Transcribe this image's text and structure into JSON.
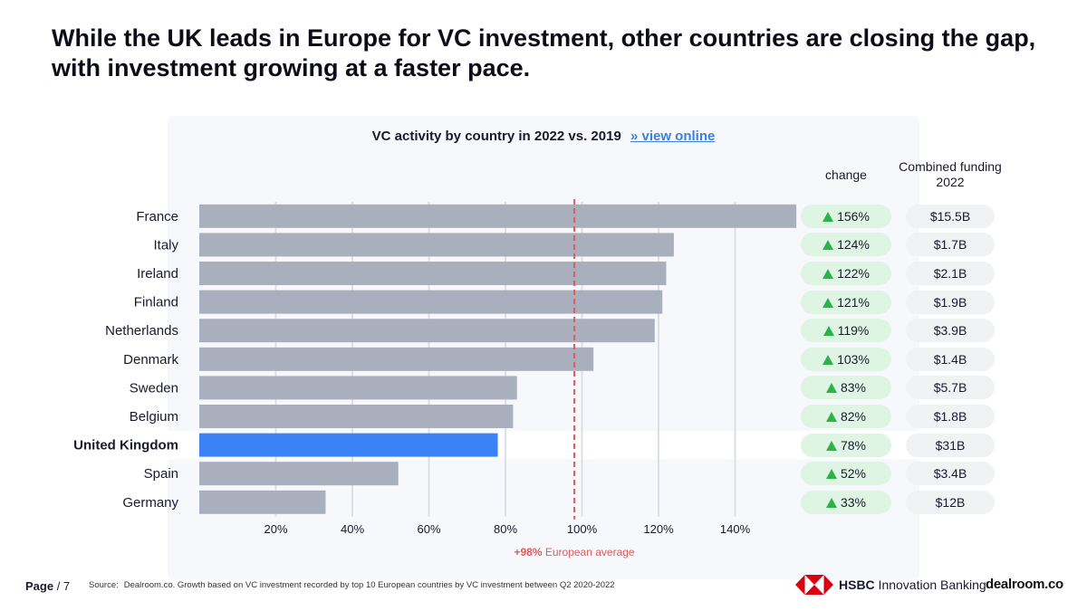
{
  "title": "While the UK leads in Europe for VC investment, other countries are closing the gap, with investment growing at a faster pace.",
  "chart_header": {
    "title": "VC activity by country in 2022 vs. 2019",
    "link": "» view online"
  },
  "columns": {
    "change": "change",
    "funding_line1": "Combined funding",
    "funding_line2": "2022"
  },
  "chart_data": {
    "type": "bar",
    "orientation": "horizontal",
    "title": "VC activity by country in 2022 vs. 2019",
    "categories": [
      "France",
      "Italy",
      "Ireland",
      "Finland",
      "Netherlands",
      "Denmark",
      "Sweden",
      "Belgium",
      "United Kingdom",
      "Spain",
      "Germany"
    ],
    "values": [
      156,
      124,
      122,
      121,
      119,
      103,
      83,
      82,
      78,
      52,
      33
    ],
    "highlight": "United Kingdom",
    "xlim": [
      0,
      160
    ],
    "xticks": [
      20,
      40,
      60,
      80,
      100,
      120,
      140
    ],
    "xtick_labels": [
      "20%",
      "40%",
      "60%",
      "80%",
      "100%",
      "120%",
      "140%"
    ],
    "reference_line": {
      "value": 98,
      "label_value": "+98%",
      "label_text": "European average"
    },
    "colors": {
      "bar": "#a9afbd",
      "highlight": "#3b82f6",
      "reference": "#e05a5a",
      "grid": "#dcdfe6"
    }
  },
  "rows": [
    {
      "country": "France",
      "change": "156%",
      "funding": "$15.5B"
    },
    {
      "country": "Italy",
      "change": "124%",
      "funding": "$1.7B"
    },
    {
      "country": "Ireland",
      "change": "122%",
      "funding": "$2.1B"
    },
    {
      "country": "Finland",
      "change": "121%",
      "funding": "$1.9B"
    },
    {
      "country": "Netherlands",
      "change": "119%",
      "funding": "$3.9B"
    },
    {
      "country": "Denmark",
      "change": "103%",
      "funding": "$1.4B"
    },
    {
      "country": "Sweden",
      "change": "83%",
      "funding": "$5.7B"
    },
    {
      "country": "Belgium",
      "change": "82%",
      "funding": "$1.8B"
    },
    {
      "country": "United Kingdom",
      "change": "78%",
      "funding": "$31B"
    },
    {
      "country": "Spain",
      "change": "52%",
      "funding": "$3.4B"
    },
    {
      "country": "Germany",
      "change": "33%",
      "funding": "$12B"
    }
  ],
  "footer": {
    "page_label": "Page",
    "page_num": "/ 7",
    "source_label": "Source:",
    "source_text": "Dealroom.co. Growth based on VC investment recorded by top 10 European countries by VC investment between Q2 2020-2022",
    "hsbc_bold": "HSBC",
    "hsbc_rest": " Innovation Banking",
    "dealroom": "dealroom.co"
  }
}
